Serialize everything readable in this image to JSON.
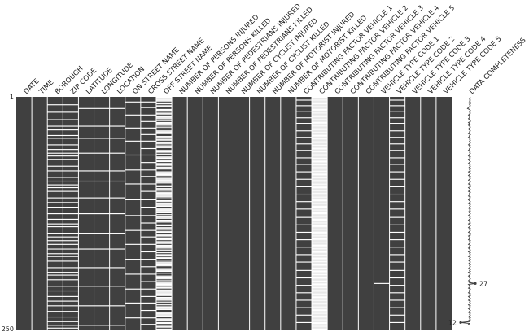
{
  "chart_data": {
    "type": "heatmap",
    "subtype": "missingno-matrix",
    "title": "",
    "row_ticks": [
      "1",
      "250"
    ],
    "row_count": 250,
    "present_color": "#404040",
    "missing_color": "#ffffff",
    "columns": [
      {
        "name": "DATE",
        "missing_rows": []
      },
      {
        "name": "TIME",
        "missing_rows": []
      },
      {
        "name": "BOROUGH",
        "missing_rows": [
          8,
          16,
          24,
          31,
          35,
          41,
          44,
          51,
          56,
          60,
          63,
          67,
          74,
          79,
          86,
          90,
          94,
          97,
          101,
          108,
          113,
          118,
          125,
          131,
          136,
          139,
          146,
          150,
          154,
          158,
          163,
          168,
          171,
          176,
          183,
          188,
          191,
          196,
          203,
          208,
          214,
          219,
          224,
          230,
          236,
          241,
          245,
          248
        ]
      },
      {
        "name": "ZIP CODE",
        "missing_rows": [
          8,
          16,
          24,
          31,
          35,
          41,
          44,
          51,
          56,
          60,
          63,
          67,
          74,
          79,
          86,
          90,
          94,
          97,
          101,
          108,
          113,
          118,
          125,
          131,
          136,
          139,
          146,
          150,
          154,
          158,
          163,
          168,
          171,
          176,
          183,
          188,
          191,
          196,
          203,
          208,
          214,
          219,
          224,
          230,
          236,
          241,
          245,
          248
        ]
      },
      {
        "name": "LATITUDE",
        "missing_rows": [
          12,
          31,
          44,
          60,
          79,
          90,
          108,
          125,
          146,
          163,
          183,
          203,
          224,
          245
        ]
      },
      {
        "name": "LONGITUDE",
        "missing_rows": [
          12,
          31,
          44,
          60,
          79,
          90,
          108,
          125,
          146,
          163,
          183,
          203,
          224,
          245
        ]
      },
      {
        "name": "LOCATION",
        "missing_rows": [
          12,
          31,
          44,
          60,
          79,
          90,
          108,
          125,
          146,
          163,
          183,
          203,
          224,
          245
        ]
      },
      {
        "name": "ON STREET NAME",
        "missing_rows": [
          5,
          19,
          33,
          47,
          62,
          78,
          93,
          110,
          127,
          143,
          158,
          174,
          190,
          206,
          221,
          237
        ]
      },
      {
        "name": "CROSS STREET NAME",
        "missing_rows": [
          5,
          11,
          19,
          26,
          33,
          40,
          47,
          55,
          62,
          70,
          78,
          85,
          93,
          101,
          110,
          118,
          127,
          135,
          143,
          150,
          158,
          166,
          174,
          182,
          190,
          198,
          206,
          214,
          221,
          229,
          237,
          244
        ]
      },
      {
        "name": "OFF STREET NAME",
        "missing_rows": [
          0,
          1,
          2,
          3,
          4,
          6,
          7,
          9,
          10,
          13,
          14,
          15,
          17,
          18,
          20,
          21,
          22,
          23,
          25,
          27,
          28,
          29,
          30,
          32,
          34,
          36,
          37,
          38,
          39,
          42,
          43,
          45,
          46,
          48,
          49,
          50,
          52,
          53,
          54,
          57,
          58,
          59,
          61,
          64,
          65,
          66,
          68,
          69,
          71,
          72,
          73,
          75,
          76,
          77,
          80,
          81,
          82,
          83,
          84,
          87,
          88,
          89,
          91,
          92,
          95,
          96,
          98,
          99,
          100,
          102,
          103,
          104,
          105,
          106,
          107,
          109,
          111,
          112,
          114,
          115,
          116,
          117,
          119,
          120,
          121,
          122,
          123,
          124,
          126,
          128,
          129,
          130,
          132,
          133,
          134,
          137,
          138,
          140,
          141,
          142,
          144,
          145,
          147,
          148,
          149,
          151,
          152,
          153,
          155,
          156,
          157,
          159,
          160,
          161,
          162,
          164,
          165,
          167,
          169,
          170,
          172,
          173,
          175,
          177,
          178,
          179,
          180,
          181,
          184,
          185,
          186,
          187,
          189,
          192,
          193,
          194,
          195,
          197,
          199,
          200,
          201,
          202,
          204,
          205,
          207,
          209,
          210,
          211,
          212,
          213,
          215,
          216,
          217,
          218,
          220,
          222,
          223,
          225,
          226,
          227,
          228,
          231,
          232,
          233,
          234,
          235,
          238,
          239,
          240,
          242,
          243,
          246,
          247,
          249
        ]
      },
      {
        "name": "NUMBER OF PERSONS INJURED",
        "missing_rows": []
      },
      {
        "name": "NUMBER OF PERSONS KILLED",
        "missing_rows": []
      },
      {
        "name": "NUMBER OF PEDESTRIANS INJURED",
        "missing_rows": []
      },
      {
        "name": "NUMBER OF PEDESTRIANS KILLED",
        "missing_rows": []
      },
      {
        "name": "NUMBER OF CYCLIST INJURED",
        "missing_rows": []
      },
      {
        "name": "NUMBER OF CYCLIST KILLED",
        "missing_rows": []
      },
      {
        "name": "NUMBER OF MOTORIST INJURED",
        "missing_rows": []
      },
      {
        "name": "NUMBER OF MOTORIST KILLED",
        "missing_rows": []
      },
      {
        "name": "CONTRIBUTING FACTOR VEHICLE 1",
        "missing_rows": [
          3,
          9,
          15,
          22,
          28,
          36,
          43,
          50,
          57,
          65,
          72,
          80,
          88,
          96,
          104,
          112,
          120,
          129,
          137,
          145,
          153,
          161,
          169,
          177,
          186,
          194,
          202,
          210,
          218,
          226,
          234,
          242
        ]
      },
      {
        "name": "CONTRIBUTING FACTOR VEHICLE 2",
        "missing_rows": [
          0,
          1,
          2,
          3,
          4,
          5,
          6,
          7,
          8,
          9,
          10,
          11,
          12,
          13,
          14,
          15,
          16,
          17,
          18,
          19,
          20,
          21,
          22,
          23,
          24,
          25,
          26,
          27,
          28,
          29,
          30,
          31,
          32,
          33,
          34,
          35,
          36,
          37,
          38,
          39,
          40,
          41,
          42,
          43,
          44,
          45,
          46,
          47,
          48,
          49,
          50,
          51,
          52,
          53,
          54,
          55,
          56,
          57,
          58,
          59,
          60,
          61,
          62,
          63,
          64,
          65,
          66,
          67,
          68,
          69,
          70,
          71,
          72,
          73,
          74,
          75,
          76,
          77,
          78,
          79,
          80,
          81,
          82,
          83,
          84,
          85,
          86,
          87,
          88,
          89,
          90,
          91,
          92,
          93,
          94,
          95,
          96,
          97,
          98,
          99,
          100,
          101,
          102,
          103,
          104,
          105,
          106,
          107,
          108,
          109,
          110,
          111,
          112,
          113,
          114,
          115,
          116,
          117,
          118,
          119,
          120,
          121,
          122,
          123,
          124,
          125,
          126,
          127,
          128,
          129,
          130,
          131,
          132,
          133,
          134,
          135,
          136,
          137,
          138,
          139,
          140,
          141,
          142,
          143,
          144,
          145,
          146,
          147,
          148,
          149,
          150,
          151,
          152,
          153,
          154,
          155,
          156,
          157,
          158,
          159,
          160,
          161,
          162,
          163,
          164,
          165,
          166,
          167,
          168,
          169,
          170,
          171,
          172,
          173,
          174,
          175,
          176,
          177,
          178,
          179,
          180,
          181,
          182,
          183,
          184,
          185,
          186,
          187,
          188,
          189,
          190,
          191,
          192,
          193,
          194,
          195,
          196,
          197,
          198,
          199,
          200,
          201,
          202,
          203,
          204,
          205,
          206,
          207,
          208,
          209,
          210,
          211,
          212,
          213,
          214,
          215,
          216,
          217,
          218,
          219,
          220,
          221,
          222,
          223,
          224,
          225,
          226,
          227,
          228,
          229,
          230,
          231,
          232,
          233,
          234,
          235,
          236,
          237,
          238,
          239,
          240,
          241,
          242,
          243,
          244,
          245,
          246,
          247,
          248,
          249
        ]
      },
      {
        "name": "CONTRIBUTING FACTOR VEHICLE 3",
        "missing_rows": []
      },
      {
        "name": "CONTRIBUTING FACTOR VEHICLE 4",
        "missing_rows": []
      },
      {
        "name": "CONTRIBUTING FACTOR VEHICLE 5",
        "missing_rows": []
      },
      {
        "name": "VEHICLE TYPE CODE 1",
        "missing_rows": [
          200
        ]
      },
      {
        "name": "VEHICLE TYPE CODE 2",
        "missing_rows": [
          3,
          9,
          15,
          22,
          28,
          36,
          43,
          50,
          57,
          65,
          72,
          80,
          88,
          96,
          104,
          112,
          120,
          129,
          137,
          145,
          153,
          161,
          169,
          177,
          186,
          194,
          202,
          210,
          218,
          226,
          234,
          242
        ]
      },
      {
        "name": "VEHICLE TYPE CODE 3",
        "missing_rows": []
      },
      {
        "name": "VEHICLE TYPE CODE 4",
        "missing_rows": []
      },
      {
        "name": "VEHICLE TYPE CODE 5",
        "missing_rows": []
      }
    ],
    "sparkline": {
      "label": "DATA COMPLETENESS",
      "max_label": "27",
      "min_label": "12",
      "max_value": 27,
      "min_value": 12,
      "values": [
        22,
        22,
        21,
        22,
        21,
        22,
        20,
        22,
        21,
        22,
        21,
        20,
        19,
        21,
        22,
        22,
        21,
        22,
        21,
        20,
        22,
        21,
        21,
        20,
        21,
        22,
        22,
        20,
        21,
        22,
        20,
        21,
        22,
        21,
        20,
        21,
        22,
        21,
        21,
        20,
        22,
        21,
        21,
        20,
        22,
        21,
        22,
        21,
        21,
        22,
        21,
        20,
        22,
        21,
        22,
        21,
        21,
        20,
        22,
        21,
        22,
        21,
        21,
        20,
        22,
        21,
        22,
        20,
        21,
        22,
        21,
        20,
        22,
        21,
        22,
        21,
        20,
        22,
        21,
        22,
        20,
        21,
        22,
        21,
        20,
        22,
        21,
        22,
        21,
        20,
        21,
        22,
        21,
        20,
        22,
        21,
        22,
        20,
        21,
        22,
        21,
        20,
        22,
        21,
        22,
        21,
        20,
        22,
        21,
        22,
        20,
        21,
        22,
        21,
        20,
        22,
        21,
        22,
        21,
        20,
        22,
        21,
        22,
        20,
        21,
        22,
        21,
        20,
        22,
        21,
        22,
        21,
        20,
        22,
        21,
        22,
        20,
        21,
        22,
        21,
        20,
        22,
        21,
        22,
        21,
        20,
        22,
        21,
        22,
        20,
        21,
        22,
        21,
        20,
        22,
        21,
        22,
        21,
        20,
        22,
        21,
        22,
        20,
        21,
        22,
        21,
        20,
        22,
        21,
        22,
        21,
        20,
        22,
        21,
        22,
        20,
        21,
        22,
        21,
        20,
        22,
        21,
        22,
        21,
        20,
        22,
        21,
        22,
        20,
        21,
        22,
        21,
        20,
        22,
        21,
        22,
        21,
        20,
        22,
        21,
        27,
        20,
        21,
        22,
        21,
        20,
        22,
        21,
        22,
        21,
        20,
        22,
        21,
        22,
        20,
        21,
        22,
        21,
        20,
        22,
        21,
        22,
        21,
        20,
        22,
        21,
        22,
        20,
        21,
        22,
        21,
        20,
        22,
        21,
        22,
        21,
        20,
        22,
        21,
        22,
        20,
        21,
        12,
        21,
        20,
        22
      ]
    }
  }
}
